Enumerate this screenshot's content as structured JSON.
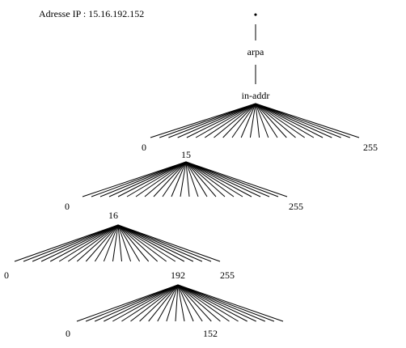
{
  "title": "Adresse IP : 15.16.192.152",
  "root": {
    "label": "•"
  },
  "chain": [
    "arpa",
    "in-addr"
  ],
  "levels": [
    {
      "label": "in-addr",
      "first": "0",
      "last": "255"
    },
    {
      "label": "15",
      "first": "0",
      "last": "255"
    },
    {
      "label": "16",
      "first": "0",
      "last": "255"
    },
    {
      "label": "192",
      "first": "0",
      "last": "152"
    }
  ]
}
